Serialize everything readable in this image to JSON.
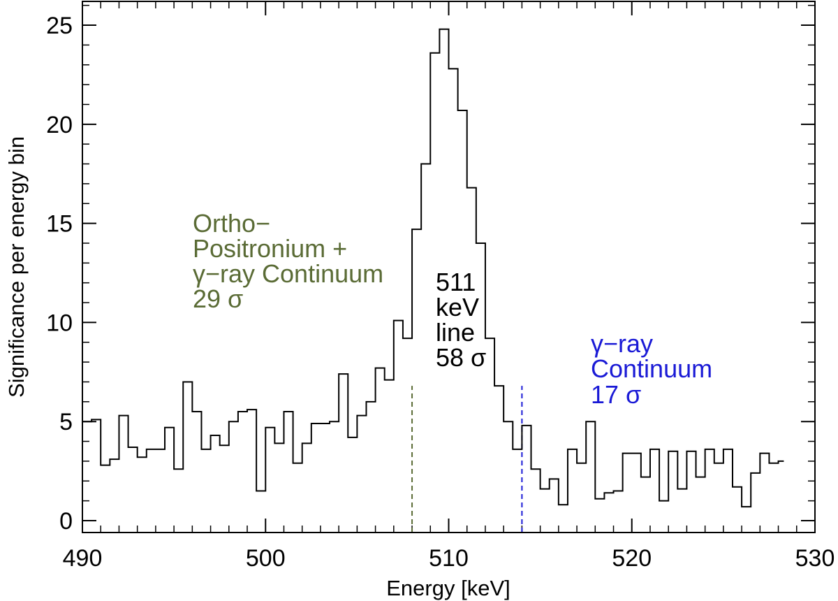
{
  "chart_data": {
    "type": "line",
    "style": "step",
    "title": "",
    "xlabel": "Energy [keV]",
    "ylabel": "Significance per energy bin",
    "xlim": [
      490,
      530
    ],
    "ylim": [
      -0.6,
      26.2
    ],
    "x_ticks": [
      490,
      500,
      510,
      520,
      530
    ],
    "y_ticks": [
      0,
      5,
      10,
      15,
      20,
      25
    ],
    "x_minor_step": 1,
    "y_minor_step": 1,
    "bin_start": 490,
    "bin_width": 0.5,
    "series": [
      {
        "name": "significance",
        "color": "#000000",
        "values": [
          5.0,
          5.1,
          2.8,
          3.1,
          5.3,
          3.7,
          3.2,
          3.6,
          3.6,
          4.7,
          2.6,
          7.0,
          5.5,
          3.6,
          4.3,
          3.8,
          5.0,
          5.5,
          5.6,
          1.5,
          4.7,
          3.9,
          5.5,
          2.9,
          3.9,
          4.9,
          4.9,
          5.0,
          7.4,
          4.2,
          5.3,
          6.0,
          7.7,
          7.1,
          10.1,
          9.2,
          14.7,
          18.0,
          23.6,
          24.8,
          22.8,
          20.7,
          16.8,
          14.0,
          9.2,
          6.8,
          5.0,
          3.6,
          4.8,
          2.6,
          1.6,
          2.1,
          0.8,
          3.6,
          2.9,
          5.0,
          1.1,
          1.4,
          1.5,
          3.4,
          3.4,
          2.2,
          3.6,
          1.0,
          3.5,
          1.6,
          3.5,
          2.2,
          3.6,
          2.9,
          3.6,
          1.7,
          0.7,
          2.4,
          3.4,
          2.9,
          3.0
        ],
        "last_bin_width": 0.3
      }
    ],
    "markers": [
      {
        "name": "ortho-positronium-boundary",
        "x": 508.0,
        "y_top": 6.8,
        "color": "#5a6b35"
      },
      {
        "name": "continuum-boundary",
        "x": 514.0,
        "y_top": 6.8,
        "color": "#1a1ad6"
      }
    ],
    "annotations": [
      {
        "name": "ortho-positronium-label",
        "color": "#5a6b35",
        "lines": [
          "Ortho−",
          "Positronium +",
          "γ−ray Continuum",
          "29 σ"
        ]
      },
      {
        "name": "line-511-label",
        "color": "#000000",
        "lines": [
          "511",
          "keV",
          "line",
          "58 σ"
        ]
      },
      {
        "name": "gamma-continuum-label",
        "color": "#1a1ad6",
        "lines": [
          "γ−ray",
          "Continuum",
          "17 σ"
        ]
      }
    ]
  }
}
